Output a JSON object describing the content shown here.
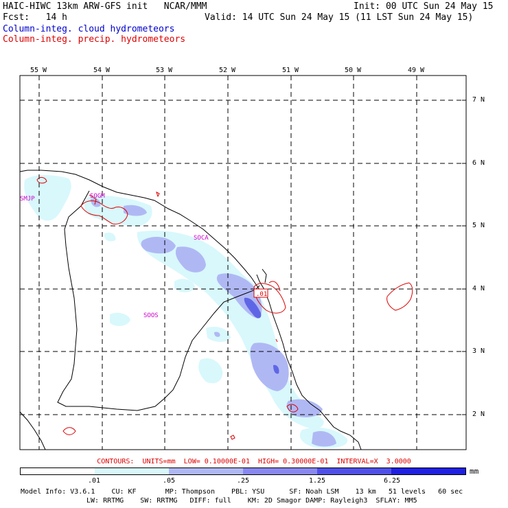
{
  "header": {
    "title": "HAIC-HIWC 13km ARW-GFS init   NCAR/MMM",
    "init": "Init: 00 UTC Sun 24 May 15",
    "fcst": "Fcst:   14 h",
    "valid": "Valid: 14 UTC Sun 24 May 15 (11 LST Sun 24 May 15)",
    "field1": "Column-integ. cloud hydrometeors",
    "field2": "Column-integ. precip. hydrometeors"
  },
  "axes": {
    "lon_labels": [
      "55 W",
      "54 W",
      "53 W",
      "52 W",
      "51 W",
      "50 W",
      "49 W"
    ],
    "lat_labels": [
      "7 N",
      "6 N",
      "5 N",
      "4 N",
      "3 N",
      "2 N"
    ]
  },
  "stations": [
    "SMJP",
    "SOGM",
    "SOCA",
    "SOOS"
  ],
  "contour_label": ".01",
  "contours_info": "CONTOURS:  UNITS=mm  LOW= 0.10000E-01  HIGH= 0.30000E-01  INTERVAL=X  3.0000",
  "colorbar": {
    "labels": [
      ".01",
      ".05",
      ".25",
      "1.25",
      "6.25"
    ],
    "unit": "mm",
    "colors": [
      "#ffffff",
      "#d8f8fc",
      "#b0b8f4",
      "#8888f0",
      "#5050e8",
      "#2020e0"
    ]
  },
  "model_info": {
    "line1": "Model Info: V3.6.1    CU: KF       MP: Thompson    PBL: YSU      SF: Noah LSM    13 km   51 levels   60 sec",
    "line2": "LW: RRTMG    SW: RRTMG   DIFF: full    KM: 2D Smagor DAMP: Rayleigh3  SFLAY: MM5"
  }
}
